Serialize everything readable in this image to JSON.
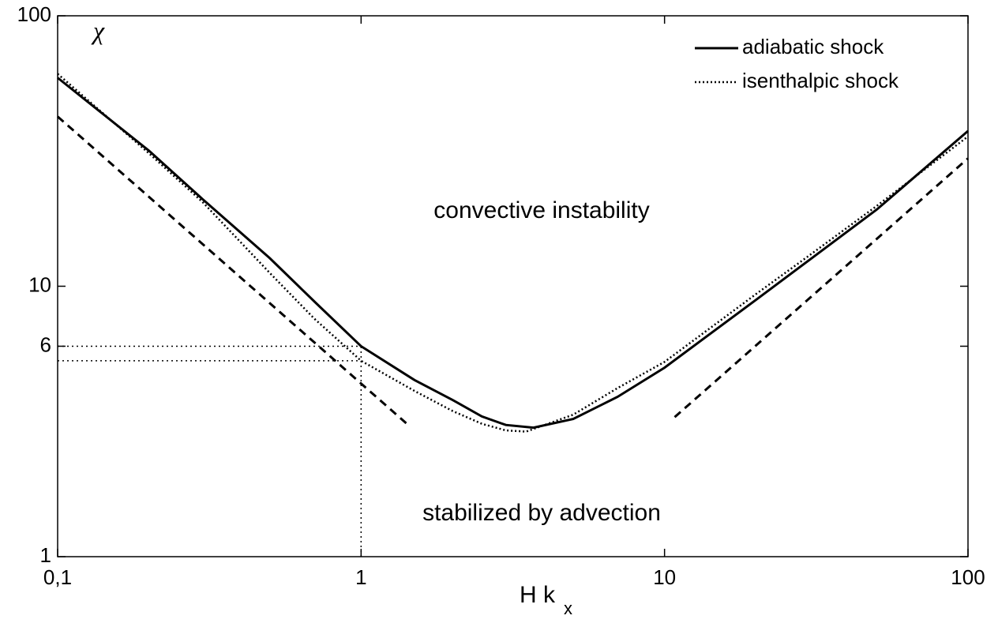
{
  "chart_data": {
    "type": "line",
    "log_x": true,
    "log_y": true,
    "ylabel": "χ",
    "xlabel": "H k",
    "xlabel_subscript": "x",
    "annotations": [
      "convective instability",
      "stabilized by advection"
    ],
    "xlim": [
      0.1,
      100
    ],
    "ylim": [
      1,
      100
    ],
    "xticks": [
      {
        "value": 0.1,
        "label": "0,1"
      },
      1,
      10,
      100
    ],
    "yticks": [
      1,
      6,
      10,
      100
    ],
    "legend": "top-right",
    "series": [
      {
        "name": "adiabatic shock",
        "color": "#000000",
        "dash": "solid",
        "x": [
          0.1,
          0.2,
          0.3,
          0.5,
          0.7,
          1,
          1.5,
          2,
          2.5,
          3,
          3.7,
          5,
          7,
          10,
          20,
          30,
          50,
          100
        ],
        "values": [
          59,
          31.7,
          21,
          12.7,
          8.8,
          6,
          4.5,
          3.8,
          3.3,
          3.07,
          3,
          3.23,
          3.9,
          5,
          8.9,
          12.5,
          19.2,
          37.5
        ]
      },
      {
        "name": "isenthalpic shock",
        "color": "#000000",
        "dash": "dotted",
        "x": [
          0.1,
          0.2,
          0.3,
          0.5,
          0.7,
          1,
          1.5,
          2,
          2.5,
          3,
          3.5,
          5,
          7,
          10,
          20,
          30,
          50,
          100
        ],
        "values": [
          61,
          31,
          20.5,
          11.2,
          7.6,
          5.3,
          4.1,
          3.46,
          3.1,
          2.93,
          2.9,
          3.35,
          4.2,
          5.25,
          9.35,
          13,
          19.8,
          35.8
        ]
      }
    ],
    "asymptotes": [
      {
        "color": "#000000",
        "dash": "dashed",
        "x": [
          0.1,
          1.43
        ],
        "values": [
          42.4,
          3.07
        ]
      },
      {
        "color": "#000000",
        "dash": "dashed",
        "x": [
          10.8,
          100
        ],
        "values": [
          3.28,
          29.7
        ]
      }
    ],
    "ref_y": [
      6,
      5.3
    ],
    "ref_x": 1
  }
}
